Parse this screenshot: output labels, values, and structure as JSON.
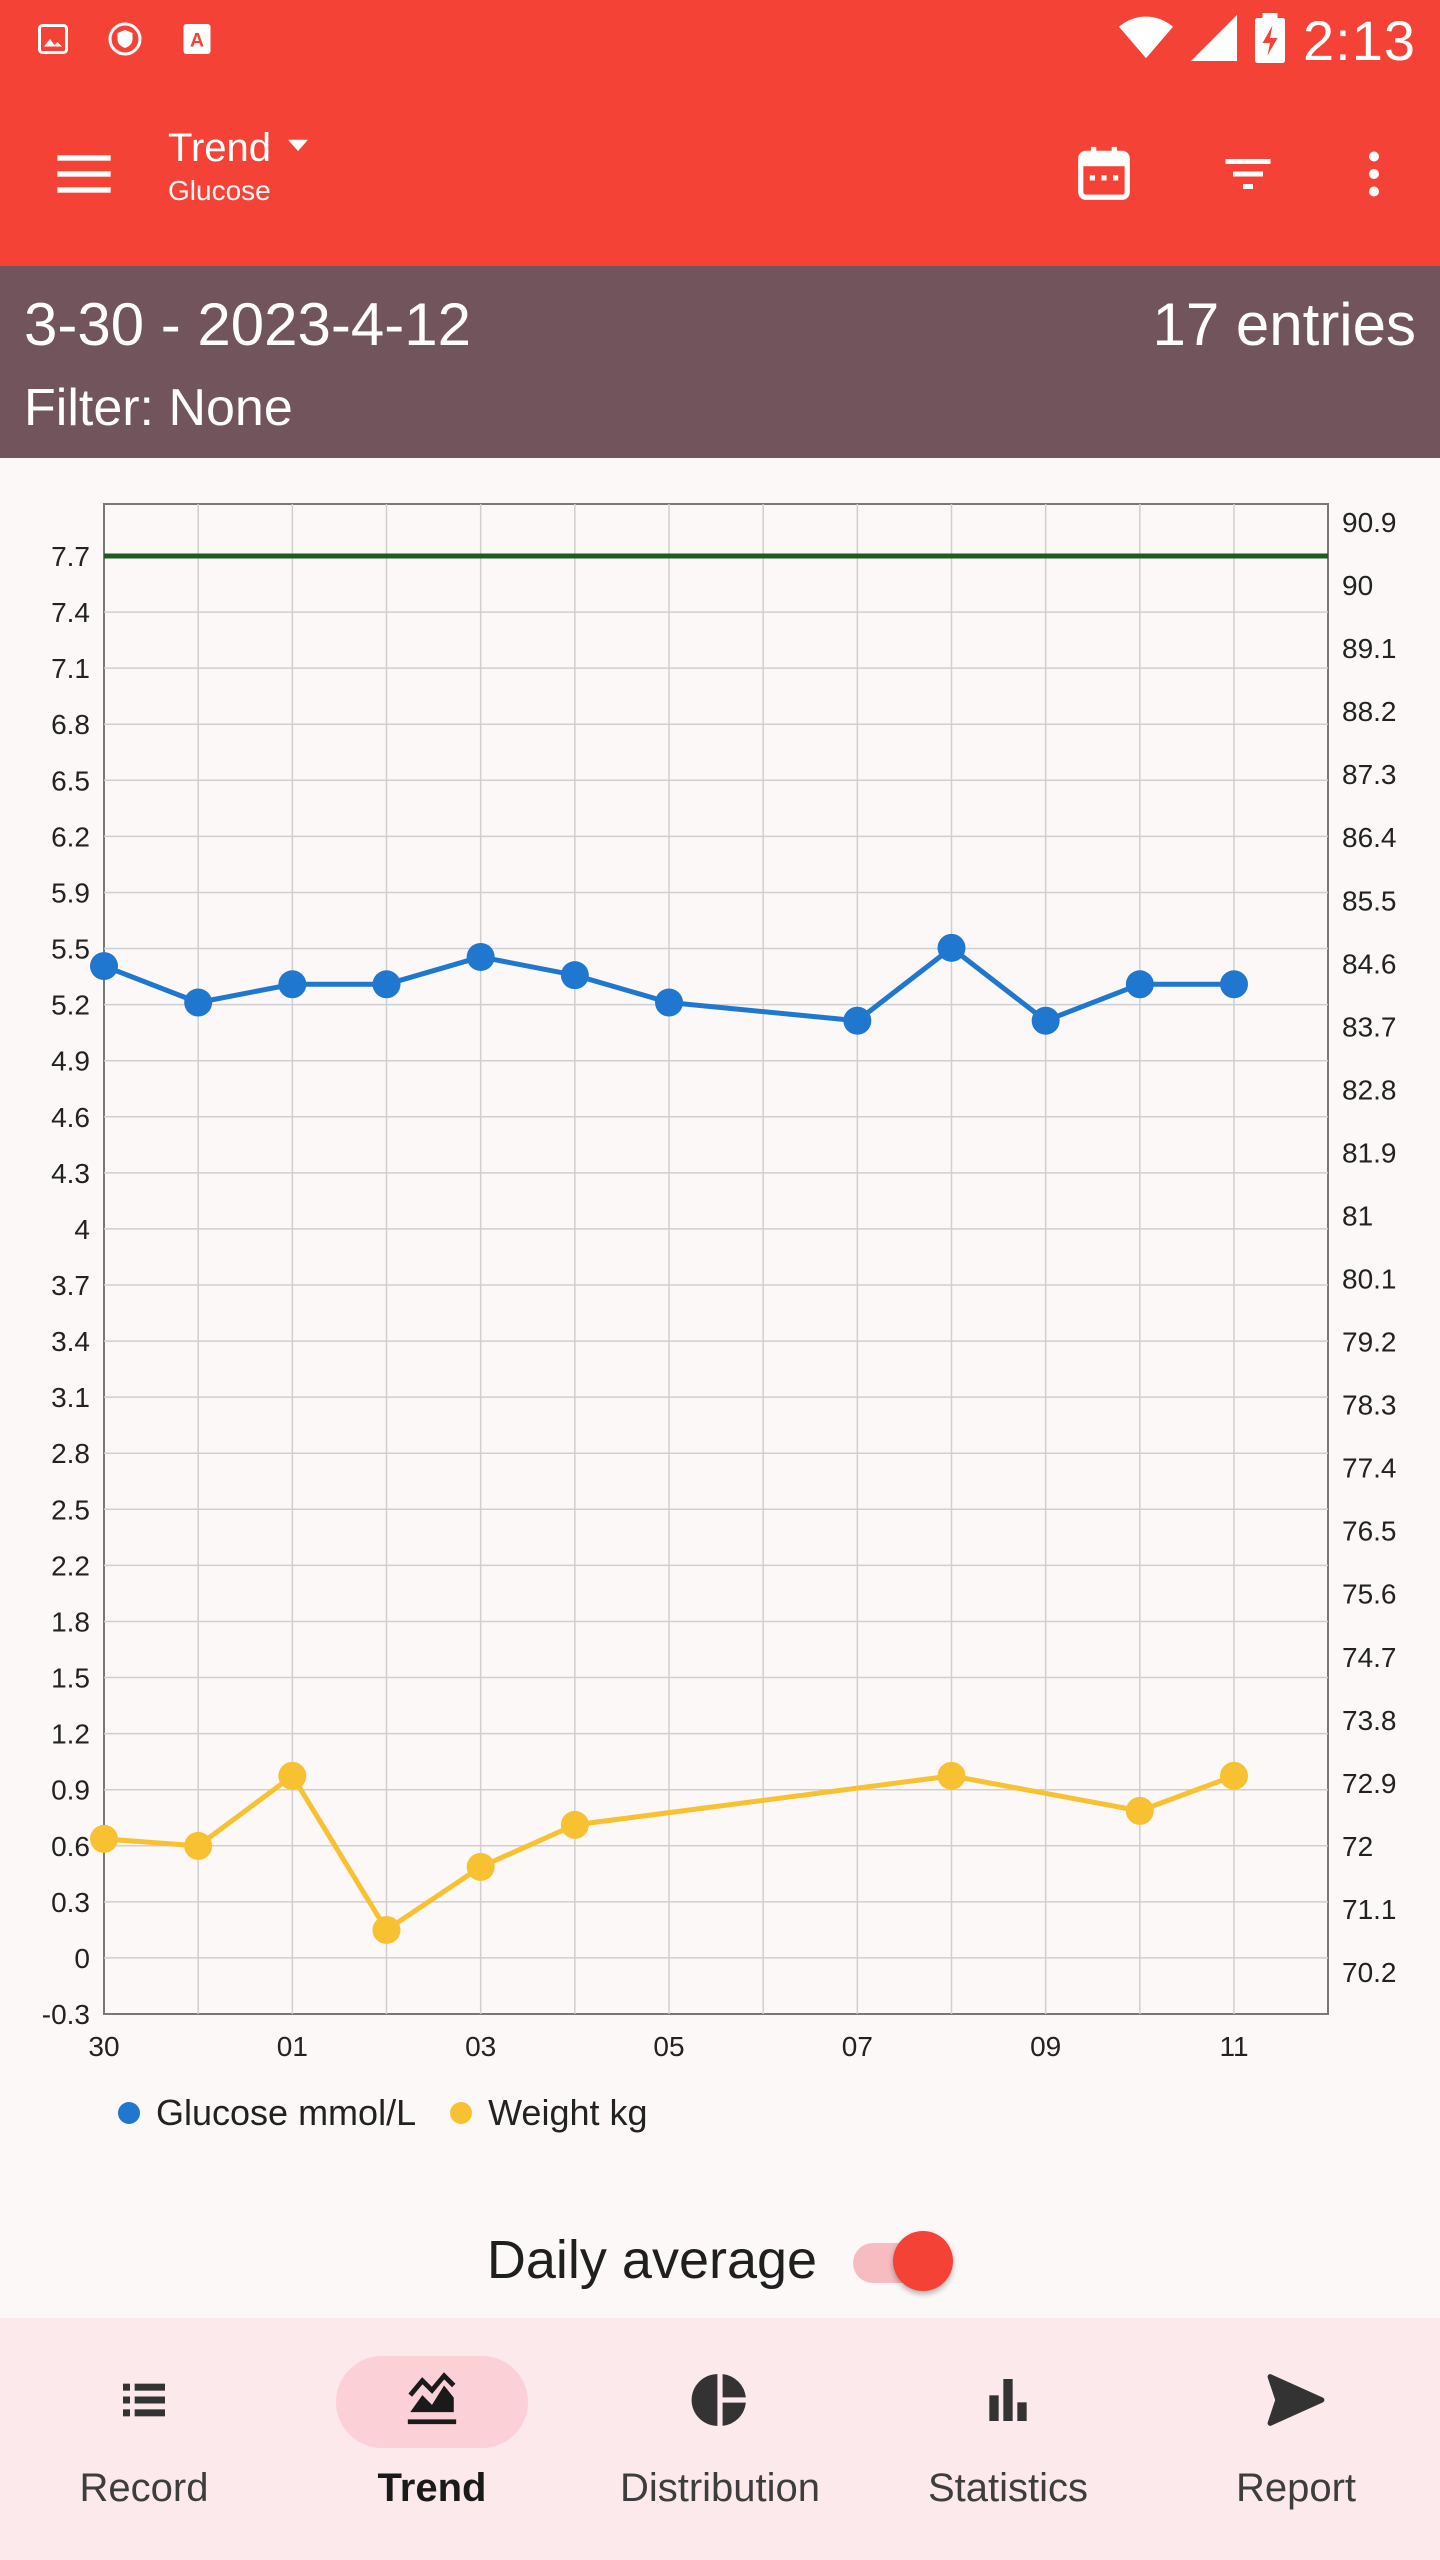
{
  "status_bar": {
    "time": "2:13",
    "left_icons": [
      "image-icon",
      "shield-icon",
      "text-document-icon"
    ],
    "right_icons": [
      "wifi-icon",
      "signal-icon",
      "battery-charging-icon"
    ]
  },
  "app_bar": {
    "title": "Trend",
    "subtitle": "Glucose",
    "actions": [
      "calendar-icon",
      "filter-icon",
      "more-vert-icon"
    ]
  },
  "info": {
    "range": "3-30 - 2023-4-12",
    "entries": "17 entries",
    "filter": "Filter: None"
  },
  "chart_data": {
    "type": "line",
    "x_ticks": [
      "30",
      "01",
      "03",
      "05",
      "07",
      "09",
      "11"
    ],
    "y_left_ticks": [
      "7.7",
      "7.4",
      "7.1",
      "6.8",
      "6.5",
      "6.2",
      "5.9",
      "5.5",
      "5.2",
      "4.9",
      "4.6",
      "4.3",
      "4",
      "3.7",
      "3.4",
      "3.1",
      "2.8",
      "2.5",
      "2.2",
      "1.8",
      "1.5",
      "1.2",
      "0.9",
      "0.6",
      "0.3",
      "0",
      "-0.3"
    ],
    "y_right_ticks": [
      "90.9",
      "90",
      "89.1",
      "88.2",
      "87.3",
      "86.4",
      "85.5",
      "84.6",
      "83.7",
      "82.8",
      "81.9",
      "81",
      "80.1",
      "79.2",
      "78.3",
      "77.4",
      "76.5",
      "75.6",
      "74.7",
      "73.8",
      "72.9",
      "72",
      "71.1",
      "70.2"
    ],
    "left_range": [
      -0.3,
      7.7
    ],
    "right_range": [
      69.8,
      90.9
    ],
    "target_line": 7.7,
    "target_color": "#1b5e20",
    "series": [
      {
        "name": "Glucose mmol/L",
        "color": "#1f77d0",
        "axis": "left",
        "points": [
          {
            "x": 0,
            "y": 5.45
          },
          {
            "x": 1,
            "y": 5.25
          },
          {
            "x": 2,
            "y": 5.35
          },
          {
            "x": 3,
            "y": 5.35
          },
          {
            "x": 4,
            "y": 5.5
          },
          {
            "x": 5,
            "y": 5.4
          },
          {
            "x": 6,
            "y": 5.25
          },
          {
            "x": 8,
            "y": 5.15
          },
          {
            "x": 9,
            "y": 5.55
          },
          {
            "x": 10,
            "y": 5.15
          },
          {
            "x": 11,
            "y": 5.35
          },
          {
            "x": 12,
            "y": 5.35
          }
        ]
      },
      {
        "name": "Weight kg",
        "color": "#f7c132",
        "axis": "right",
        "points": [
          {
            "x": 0,
            "y": 72.1
          },
          {
            "x": 1,
            "y": 72.0
          },
          {
            "x": 2,
            "y": 73.0
          },
          {
            "x": 3,
            "y": 70.8
          },
          {
            "x": 4,
            "y": 71.7
          },
          {
            "x": 5,
            "y": 72.3
          },
          {
            "x": 9,
            "y": 73.0
          },
          {
            "x": 11,
            "y": 72.5
          },
          {
            "x": 12,
            "y": 73.0
          }
        ]
      }
    ],
    "grid": true,
    "legend": "bottom-left"
  },
  "legend": {
    "items": [
      {
        "label": "Glucose mmol/L",
        "color": "#1f77d0"
      },
      {
        "label": "Weight kg",
        "color": "#f7c132"
      }
    ]
  },
  "daily_average": {
    "label": "Daily average",
    "enabled": true
  },
  "bottom_nav": {
    "items": [
      {
        "label": "Record",
        "icon": "list-icon",
        "active": false
      },
      {
        "label": "Trend",
        "icon": "trend-icon",
        "active": true
      },
      {
        "label": "Distribution",
        "icon": "pie-chart-icon",
        "active": false
      },
      {
        "label": "Statistics",
        "icon": "bar-chart-icon",
        "active": false
      },
      {
        "label": "Report",
        "icon": "send-icon",
        "active": false
      }
    ]
  }
}
